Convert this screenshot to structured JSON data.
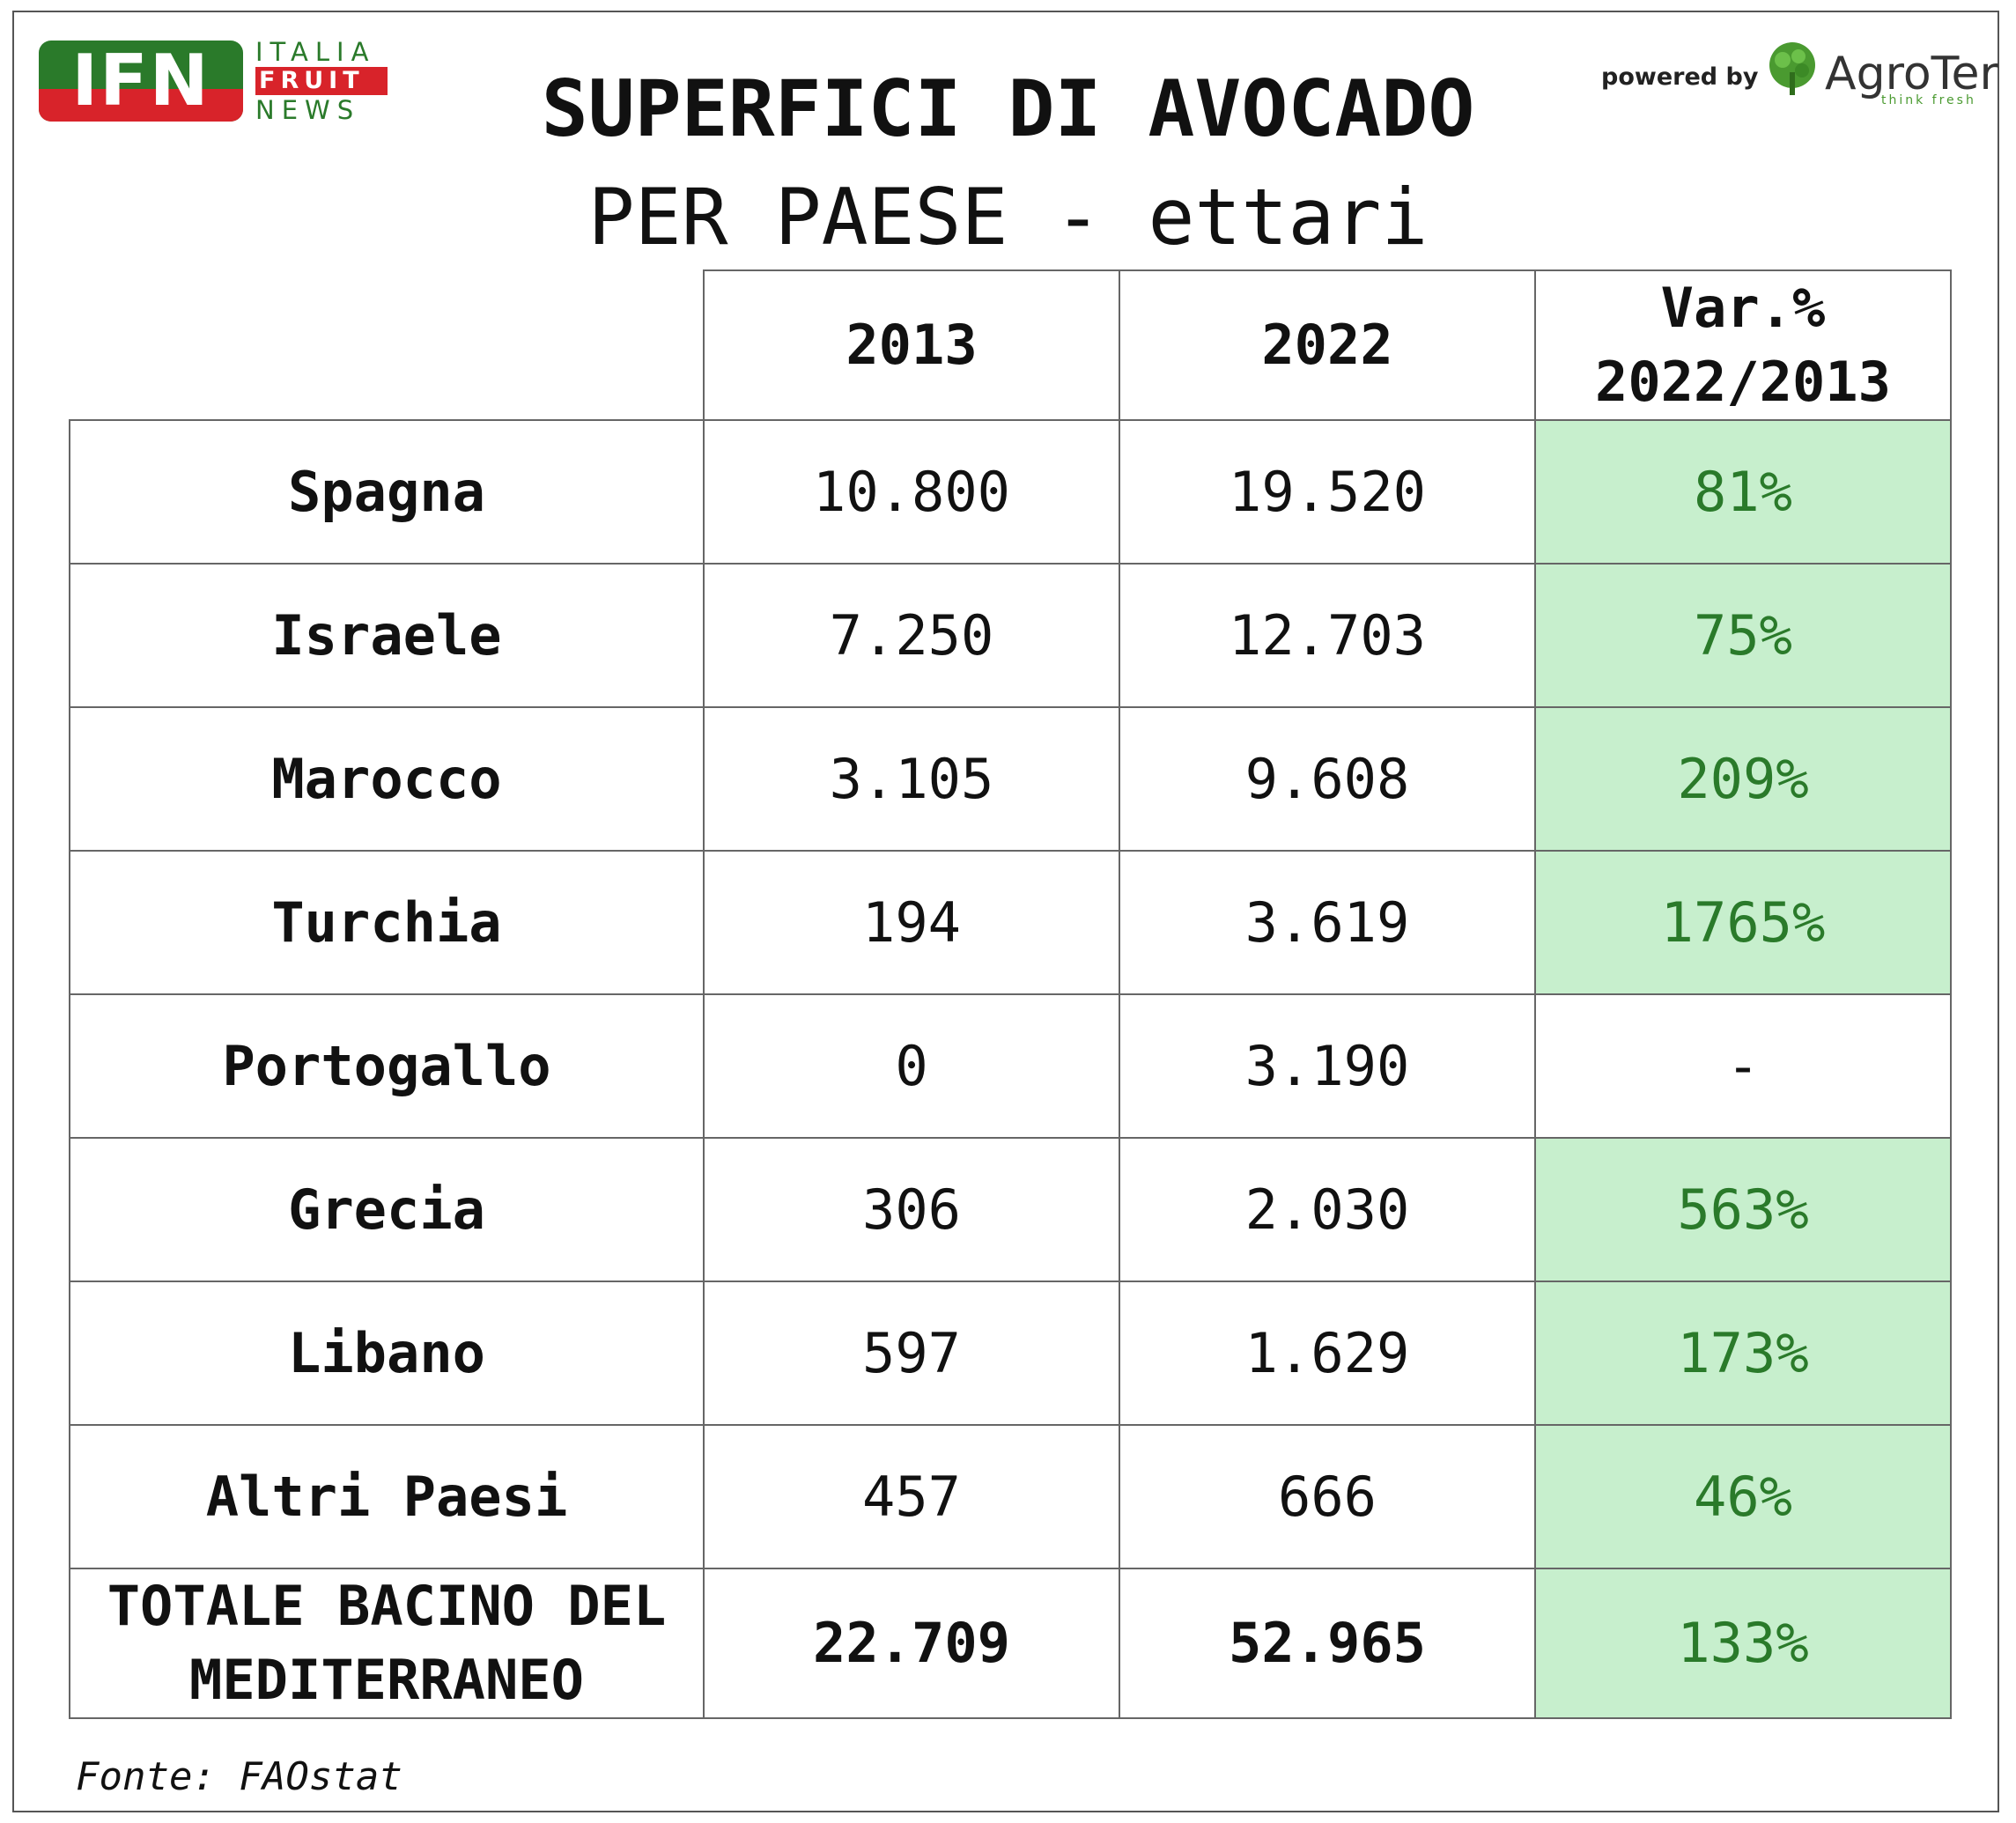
{
  "logo": {
    "letters": "IFN",
    "word1": "ITALIA",
    "word2": "FRUIT",
    "word3": "NEWS"
  },
  "sponsor": {
    "powered_by": "powered by",
    "name": "AgroTer",
    "tagline": "think fresh"
  },
  "title": "SUPERFICI DI AVOCADO",
  "subtitle": "PER PAESE - ettari",
  "colors": {
    "positive_bg": "#c7efcd",
    "variation_text": "#2a7a2a",
    "logo_green": "#2a7a2a",
    "logo_red": "#d8232a"
  },
  "source": "Fonte: FAOstat",
  "chart_data": {
    "type": "table",
    "title": "SUPERFICI DI AVOCADO",
    "subtitle": "PER PAESE - ettari",
    "columns": [
      "2013",
      "2022",
      "Var.% 2022/2013"
    ],
    "header_var_line1": "Var.%",
    "header_var_line2": "2022/2013",
    "rows": [
      {
        "country": "Spagna",
        "y2013": "10.800",
        "y2022": "19.520",
        "var": "81%"
      },
      {
        "country": "Israele",
        "y2013": "7.250",
        "y2022": "12.703",
        "var": "75%"
      },
      {
        "country": "Marocco",
        "y2013": "3.105",
        "y2022": "9.608",
        "var": "209%"
      },
      {
        "country": "Turchia",
        "y2013": "194",
        "y2022": "3.619",
        "var": "1765%"
      },
      {
        "country": "Portogallo",
        "y2013": "0",
        "y2022": "3.190",
        "var": "-"
      },
      {
        "country": "Grecia",
        "y2013": "306",
        "y2022": "2.030",
        "var": "563%"
      },
      {
        "country": "Libano",
        "y2013": "597",
        "y2022": "1.629",
        "var": "173%"
      },
      {
        "country": "Altri Paesi",
        "y2013": "457",
        "y2022": "666",
        "var": "46%"
      }
    ],
    "total": {
      "country_line1": "TOTALE BACINO DEL",
      "country_line2": "MEDITERRANEO",
      "y2013": "22.709",
      "y2022": "52.965",
      "var": "133%"
    },
    "source": "Fonte: FAOstat"
  }
}
